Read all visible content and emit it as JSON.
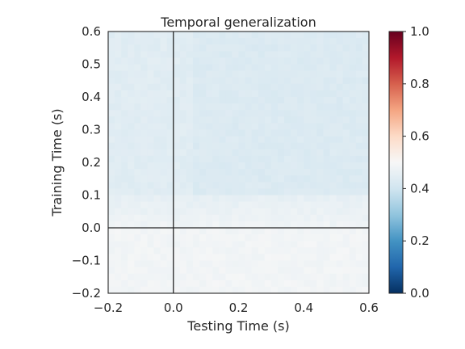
{
  "chart_data": {
    "type": "heatmap",
    "title": "Temporal generalization",
    "xlabel": "Testing Time (s)",
    "ylabel": "Training Time (s)",
    "xlim": [
      -0.2,
      0.6
    ],
    "ylim": [
      -0.2,
      0.6
    ],
    "x_ticks": [
      "−0.2",
      "0.0",
      "0.2",
      "0.4",
      "0.6"
    ],
    "y_ticks": [
      "−0.2",
      "−0.1",
      "0.0",
      "0.1",
      "0.2",
      "0.3",
      "0.4",
      "0.5",
      "0.6"
    ],
    "colorbar": {
      "colormap": "RdBu_r",
      "vmin": 0.0,
      "vmax": 1.0,
      "ticks": [
        "0.0",
        "0.2",
        "0.4",
        "0.6",
        "0.8",
        "1.0"
      ]
    },
    "reference_lines": {
      "x": 0.0,
      "y": 0.0
    },
    "grid": false,
    "value_description": "Scores near 0.45-0.5 throughout; slightly lower (~0.42-0.44) for training times above 0.1 s, near 0.5 at and below 0 s."
  }
}
